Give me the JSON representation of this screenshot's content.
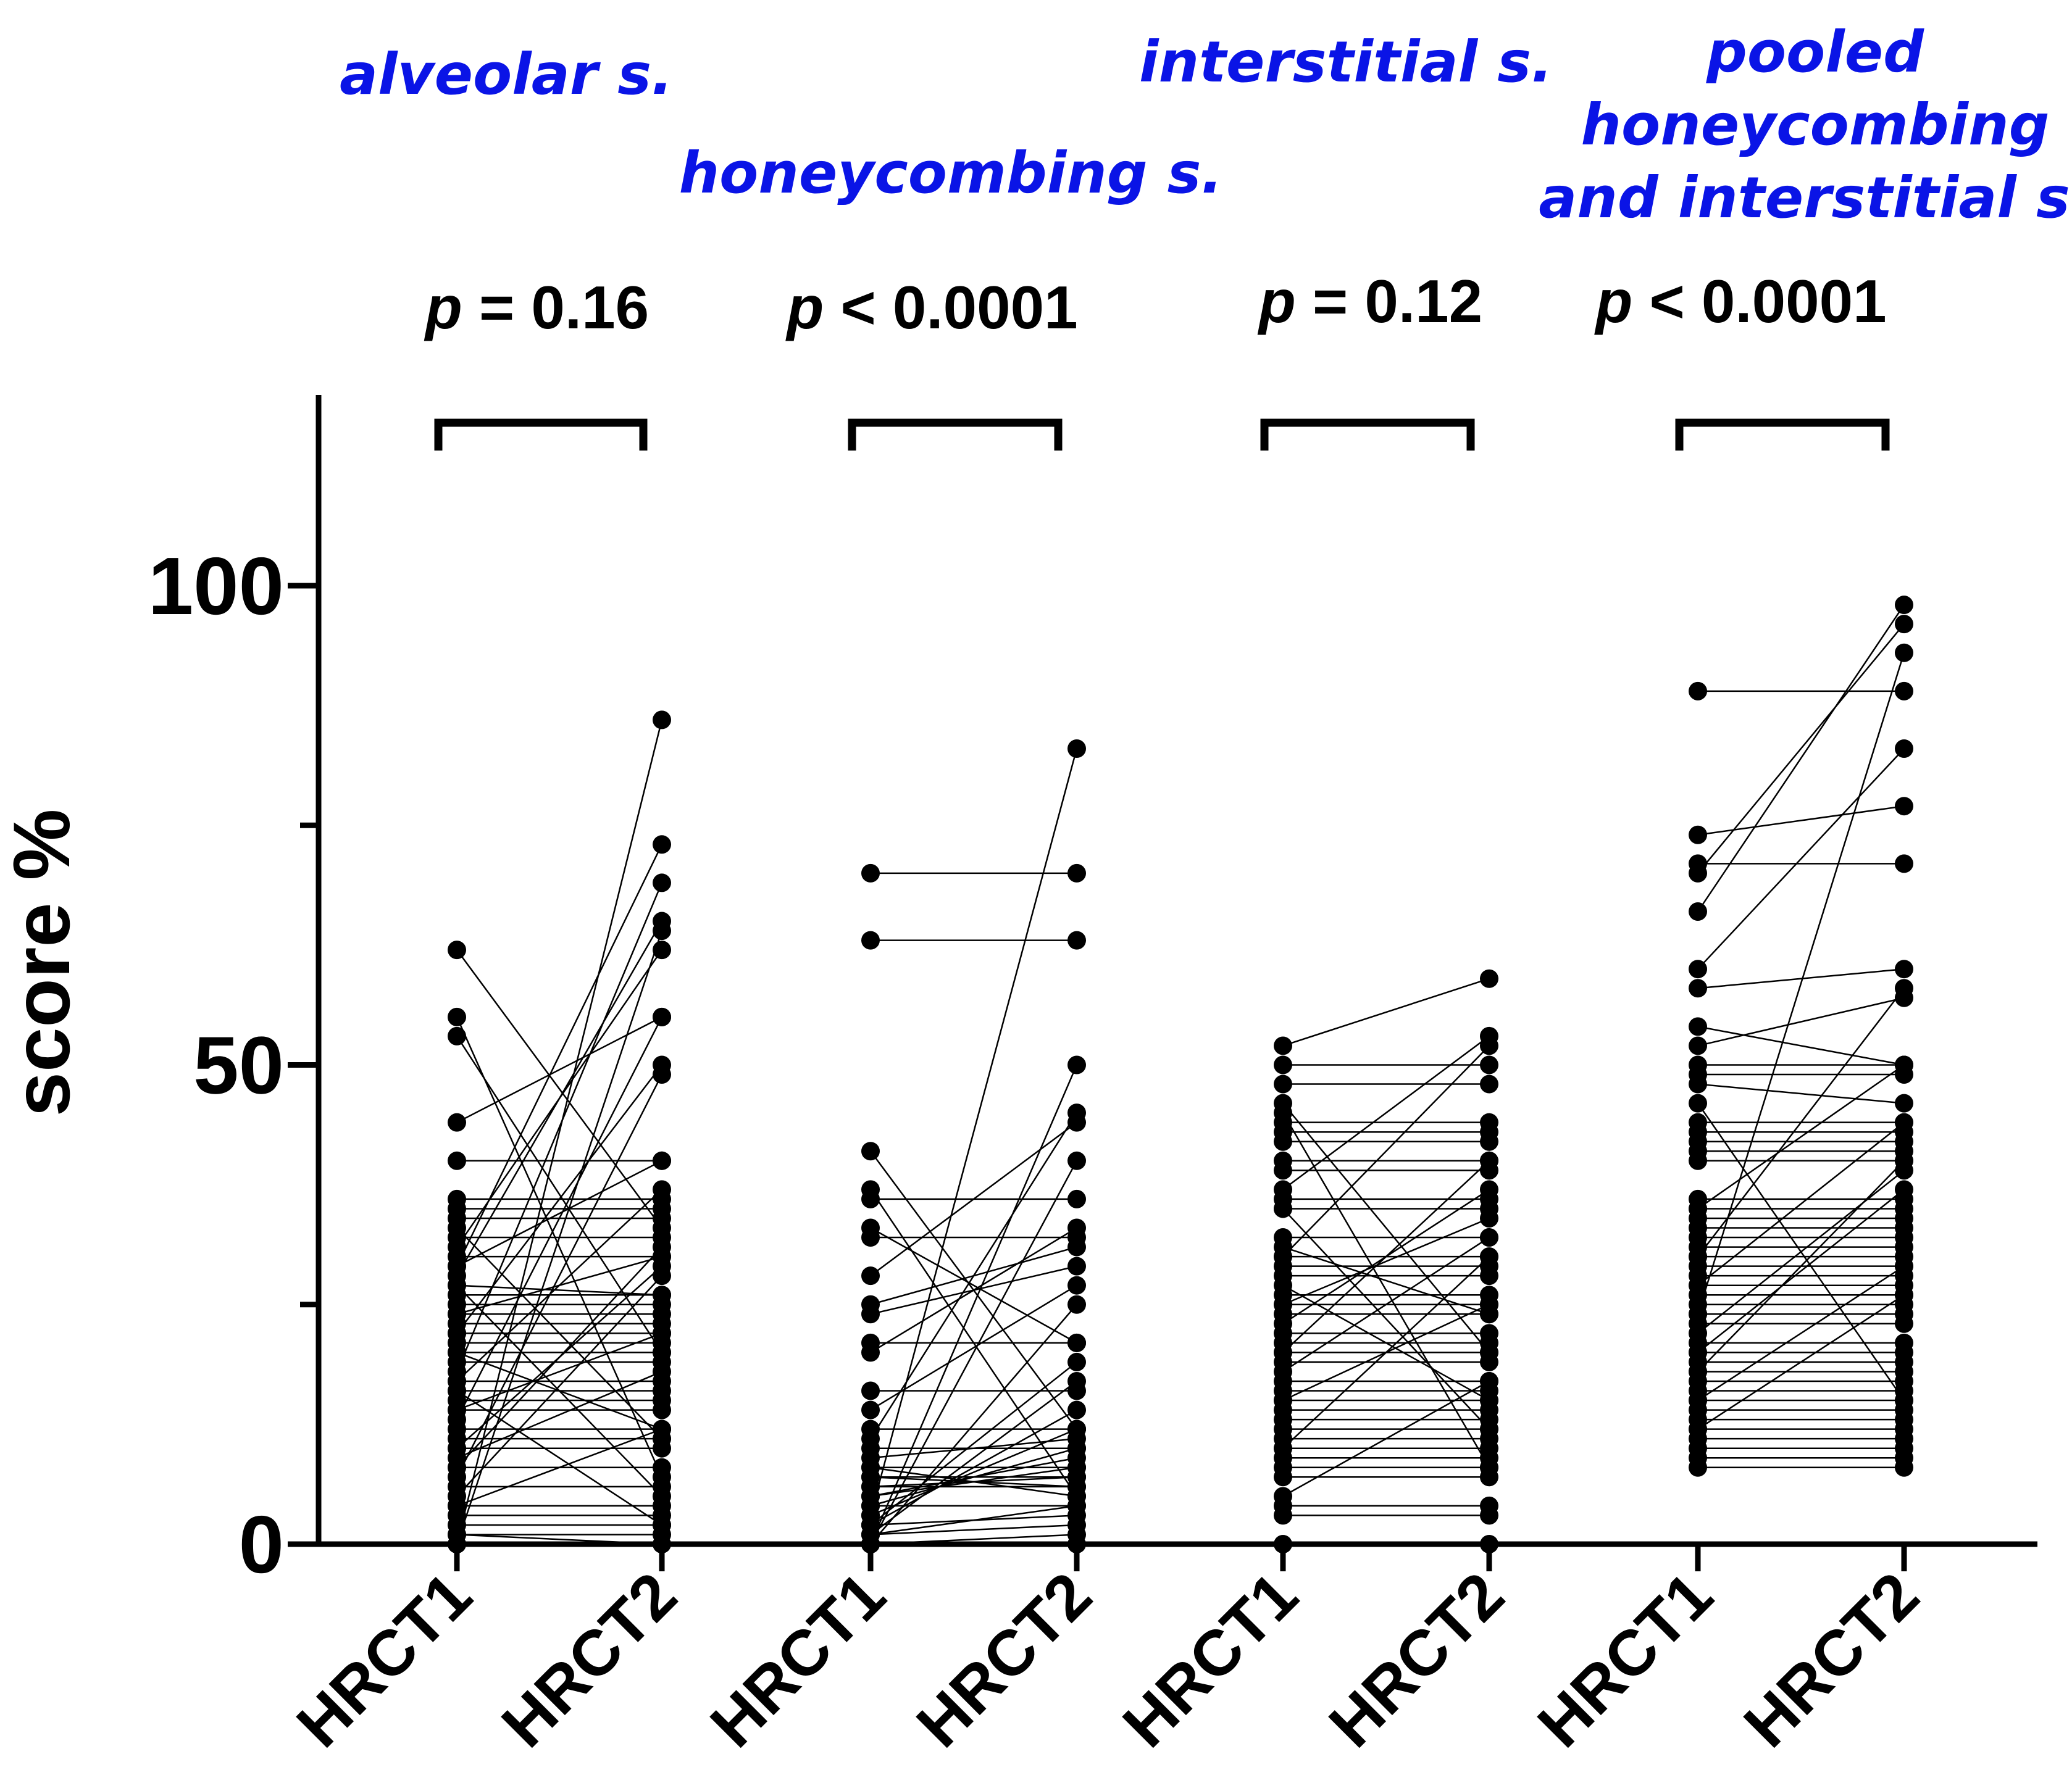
{
  "chart_data": {
    "type": "paired-dot",
    "ylabel": "score %",
    "ylim": [
      0,
      120
    ],
    "yticks_major": [
      0,
      50,
      100
    ],
    "yticks_minor": [
      25,
      75
    ],
    "group_labels": [
      "HRCT1",
      "HRCT2"
    ],
    "groups": [
      {
        "title_lines": [
          "alveolar s."
        ],
        "p_symbol": "p",
        "p_rest": " = 0.16",
        "x_labels": [
          "HRCT1",
          "HRCT2"
        ],
        "pairs": [
          [
            62,
            33
          ],
          [
            55,
            7
          ],
          [
            53,
            20
          ],
          [
            44,
            55
          ],
          [
            40,
            40
          ],
          [
            36,
            36
          ],
          [
            35,
            35
          ],
          [
            34,
            34
          ],
          [
            32,
            32
          ],
          [
            31,
            62
          ],
          [
            30,
            30
          ],
          [
            29,
            73
          ],
          [
            28,
            65
          ],
          [
            27,
            5
          ],
          [
            26,
            26
          ],
          [
            25,
            25
          ],
          [
            24,
            24
          ],
          [
            23,
            23
          ],
          [
            22,
            22
          ],
          [
            21,
            21
          ],
          [
            20,
            20
          ],
          [
            19,
            19
          ],
          [
            18,
            69
          ],
          [
            17,
            17
          ],
          [
            16,
            16
          ],
          [
            15,
            15
          ],
          [
            14,
            14
          ],
          [
            13,
            55
          ],
          [
            12,
            12
          ],
          [
            11,
            11
          ],
          [
            10,
            10
          ],
          [
            9,
            18
          ],
          [
            8,
            8
          ],
          [
            7,
            49
          ],
          [
            6,
            6
          ],
          [
            5,
            28
          ],
          [
            4,
            4
          ],
          [
            3,
            3
          ],
          [
            2,
            2
          ],
          [
            1,
            1
          ],
          [
            0,
            86
          ],
          [
            1,
            0
          ],
          [
            4,
            12
          ],
          [
            10,
            29
          ],
          [
            14,
            22
          ],
          [
            17,
            37
          ],
          [
            20,
            12
          ],
          [
            24,
            30
          ],
          [
            27,
            26
          ],
          [
            29,
            40
          ],
          [
            33,
            11
          ],
          [
            8,
            31
          ],
          [
            16,
            2
          ],
          [
            22,
            50
          ],
          [
            0,
            64
          ]
        ]
      },
      {
        "title_lines": [
          "honeycombing s."
        ],
        "p_symbol": "p",
        "p_rest": " < 0.0001",
        "x_labels": [
          "HRCT1",
          "HRCT2"
        ],
        "pairs": [
          [
            70,
            70
          ],
          [
            63,
            63
          ],
          [
            41,
            12
          ],
          [
            37,
            5
          ],
          [
            36,
            36
          ],
          [
            33,
            21
          ],
          [
            32,
            32
          ],
          [
            28,
            44
          ],
          [
            25,
            31
          ],
          [
            24,
            29
          ],
          [
            21,
            21
          ],
          [
            20,
            33
          ],
          [
            16,
            16
          ],
          [
            14,
            27
          ],
          [
            12,
            12
          ],
          [
            11,
            45
          ],
          [
            10,
            10
          ],
          [
            9,
            11
          ],
          [
            8,
            8
          ],
          [
            7,
            7
          ],
          [
            6,
            6
          ],
          [
            5,
            9
          ],
          [
            4,
            4
          ],
          [
            3,
            83
          ],
          [
            2,
            3
          ],
          [
            1,
            2
          ],
          [
            0,
            50
          ],
          [
            0,
            40
          ],
          [
            0,
            25
          ],
          [
            1,
            17
          ],
          [
            2,
            14
          ],
          [
            3,
            12
          ],
          [
            4,
            10
          ],
          [
            5,
            8
          ],
          [
            6,
            7
          ],
          [
            7,
            6
          ],
          [
            8,
            5
          ],
          [
            0,
            1
          ],
          [
            0,
            0
          ],
          [
            2,
            19
          ],
          [
            1,
            4
          ]
        ]
      },
      {
        "title_lines": [
          "interstitial s."
        ],
        "p_symbol": "p",
        "p_rest": " = 0.12",
        "x_labels": [
          "HRCT1",
          "HRCT2"
        ],
        "pairs": [
          [
            52,
            59
          ],
          [
            50,
            50
          ],
          [
            48,
            48
          ],
          [
            46,
            20
          ],
          [
            45,
            8
          ],
          [
            44,
            44
          ],
          [
            43,
            43
          ],
          [
            42,
            42
          ],
          [
            40,
            40
          ],
          [
            39,
            39
          ],
          [
            37,
            53
          ],
          [
            36,
            36
          ],
          [
            35,
            35
          ],
          [
            32,
            32
          ],
          [
            31,
            24
          ],
          [
            30,
            30
          ],
          [
            29,
            29
          ],
          [
            28,
            28
          ],
          [
            27,
            15
          ],
          [
            26,
            26
          ],
          [
            25,
            25
          ],
          [
            24,
            24
          ],
          [
            23,
            37
          ],
          [
            22,
            22
          ],
          [
            21,
            21
          ],
          [
            20,
            20
          ],
          [
            19,
            19
          ],
          [
            18,
            32
          ],
          [
            17,
            17
          ],
          [
            16,
            16
          ],
          [
            15,
            15
          ],
          [
            14,
            14
          ],
          [
            13,
            13
          ],
          [
            12,
            12
          ],
          [
            11,
            11
          ],
          [
            10,
            10
          ],
          [
            9,
            9
          ],
          [
            8,
            8
          ],
          [
            7,
            7
          ],
          [
            4,
            4
          ],
          [
            3,
            3
          ],
          [
            0,
            0
          ],
          [
            30,
            52
          ],
          [
            25,
            34
          ],
          [
            20,
            40
          ],
          [
            15,
            25
          ],
          [
            10,
            30
          ],
          [
            5,
            17
          ],
          [
            35,
            12
          ]
        ]
      },
      {
        "title_lines": [
          "pooled",
          "honeycombing",
          "and interstitial s."
        ],
        "p_symbol": "p",
        "p_rest": " < 0.0001",
        "x_labels": [
          "HRCT1",
          "HRCT2"
        ],
        "pairs": [
          [
            89,
            89
          ],
          [
            74,
            77
          ],
          [
            71,
            71
          ],
          [
            70,
            96
          ],
          [
            66,
            98
          ],
          [
            60,
            83
          ],
          [
            58,
            60
          ],
          [
            54,
            50
          ],
          [
            52,
            57
          ],
          [
            50,
            50
          ],
          [
            49,
            49
          ],
          [
            48,
            46
          ],
          [
            46,
            15
          ],
          [
            44,
            44
          ],
          [
            43,
            43
          ],
          [
            42,
            42
          ],
          [
            41,
            41
          ],
          [
            40,
            40
          ],
          [
            36,
            36
          ],
          [
            35,
            35
          ],
          [
            34,
            34
          ],
          [
            33,
            33
          ],
          [
            32,
            32
          ],
          [
            31,
            31
          ],
          [
            30,
            30
          ],
          [
            29,
            29
          ],
          [
            28,
            28
          ],
          [
            27,
            27
          ],
          [
            26,
            26
          ],
          [
            25,
            25
          ],
          [
            24,
            24
          ],
          [
            23,
            23
          ],
          [
            22,
            39
          ],
          [
            21,
            21
          ],
          [
            20,
            20
          ],
          [
            19,
            19
          ],
          [
            18,
            18
          ],
          [
            17,
            17
          ],
          [
            16,
            16
          ],
          [
            15,
            15
          ],
          [
            14,
            14
          ],
          [
            13,
            13
          ],
          [
            12,
            12
          ],
          [
            11,
            11
          ],
          [
            10,
            10
          ],
          [
            9,
            9
          ],
          [
            8,
            8
          ],
          [
            24,
            93
          ],
          [
            27,
            44
          ],
          [
            30,
            58
          ],
          [
            20,
            37
          ],
          [
            35,
            50
          ],
          [
            15,
            29
          ],
          [
            12,
            26
          ],
          [
            18,
            40
          ]
        ]
      }
    ]
  }
}
